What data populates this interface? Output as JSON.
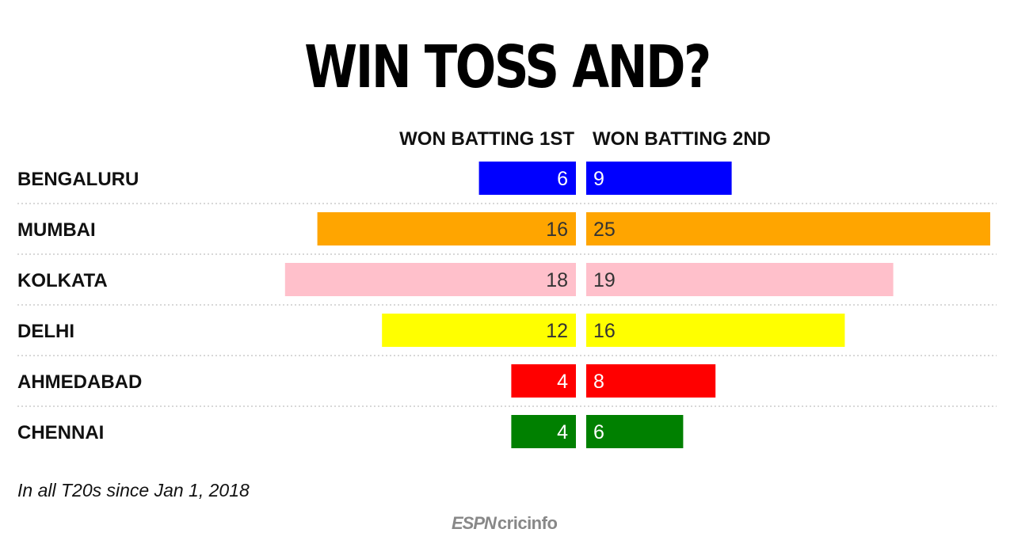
{
  "chart_data": {
    "type": "bar",
    "title": "WIN TOSS AND?",
    "categories": [
      "BENGALURU",
      "MUMBAI",
      "KOLKATA",
      "DELHI",
      "AHMEDABAD",
      "CHENNAI"
    ],
    "series": [
      {
        "name": "WON BATTING 1ST",
        "values": [
          6,
          16,
          18,
          12,
          4,
          4
        ]
      },
      {
        "name": "WON BATTING 2ND",
        "values": [
          9,
          25,
          19,
          16,
          8,
          6
        ]
      }
    ],
    "colors": [
      "#0000ff",
      "#ffa500",
      "#ffc0cb",
      "#ffff00",
      "#ff0000",
      "#008000"
    ],
    "label_colors": [
      "#ffffff",
      "#333333",
      "#333333",
      "#333333",
      "#ffffff",
      "#ffffff"
    ],
    "orientation": "horizontal-diverging",
    "xlim": [
      0,
      25
    ],
    "grid": false,
    "note": "In all T20s since Jan 1, 2018"
  },
  "logo": {
    "espn": "ESPN",
    "cricinfo": "cricinfo"
  }
}
